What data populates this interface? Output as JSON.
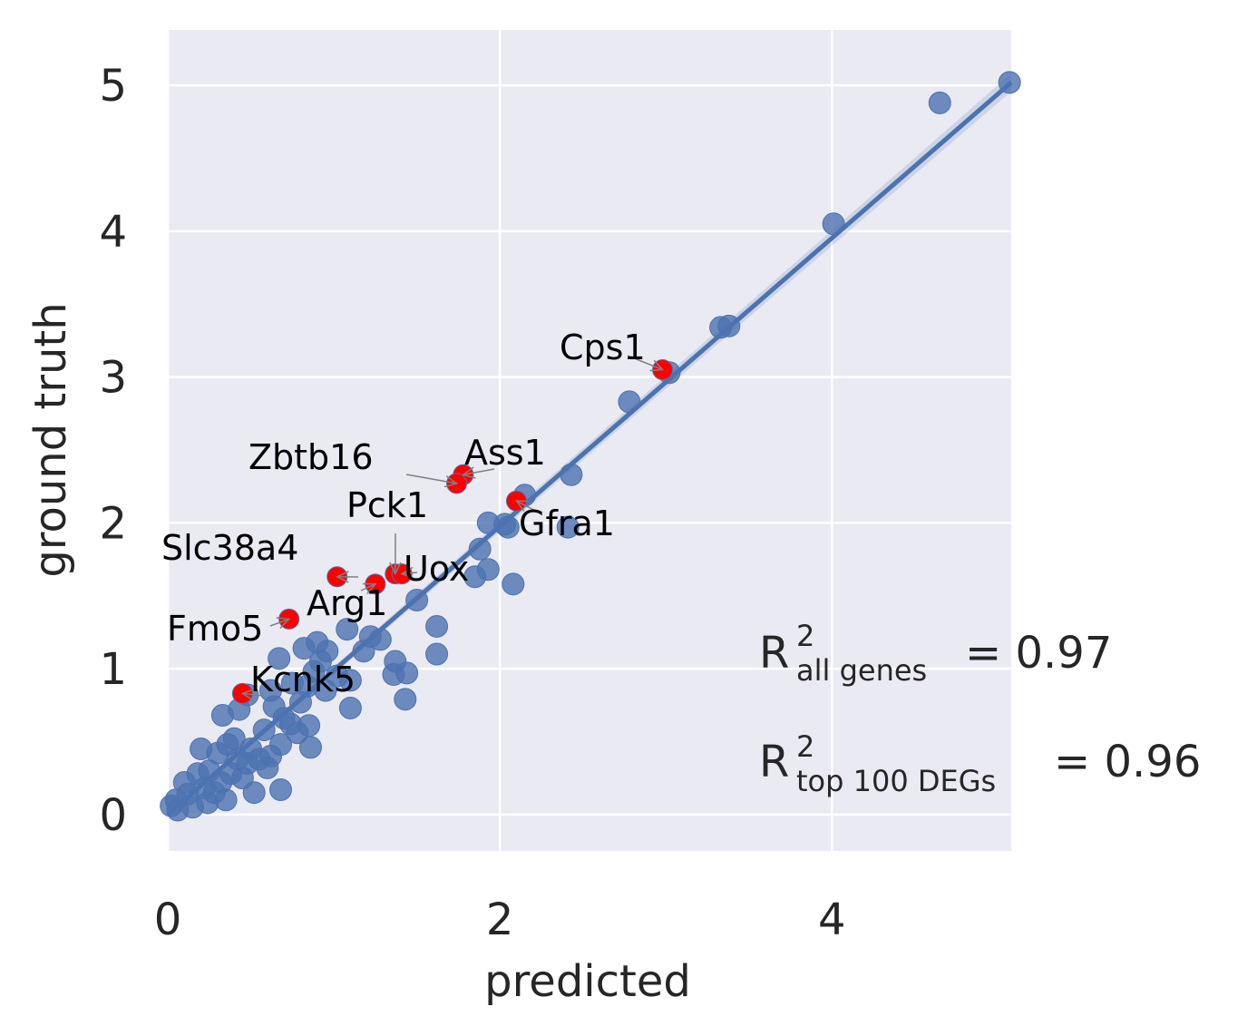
{
  "chart_data": {
    "type": "scatter",
    "xlabel": "predicted",
    "ylabel": "ground truth",
    "xlim": [
      0,
      5.08
    ],
    "ylim": [
      -0.25,
      5.38
    ],
    "xticks": [
      0,
      2,
      4
    ],
    "yticks": [
      0,
      1,
      2,
      3,
      4,
      5
    ],
    "grid": true,
    "colors": {
      "background": "#eaeaf2",
      "points": "#4c72b0",
      "highlight": "#ff0000",
      "fit_line": "#4c72b0"
    },
    "fit_line": {
      "from": [
        0,
        0
      ],
      "to": [
        5.08,
        5.02
      ]
    },
    "points": [
      [
        5.07,
        5.02
      ],
      [
        4.65,
        4.88
      ],
      [
        4.01,
        4.05
      ],
      [
        3.33,
        3.34
      ],
      [
        3.38,
        3.35
      ],
      [
        3.02,
        3.03
      ],
      [
        2.78,
        2.83
      ],
      [
        2.43,
        2.33
      ],
      [
        2.15,
        2.19
      ],
      [
        2.41,
        1.97
      ],
      [
        2.05,
        1.97
      ],
      [
        1.93,
        2.0
      ],
      [
        2.03,
        1.99
      ],
      [
        1.88,
        1.82
      ],
      [
        1.93,
        1.68
      ],
      [
        1.85,
        1.63
      ],
      [
        2.08,
        1.58
      ],
      [
        1.5,
        1.47
      ],
      [
        1.62,
        1.29
      ],
      [
        1.62,
        1.1
      ],
      [
        1.37,
        1.05
      ],
      [
        1.44,
        0.97
      ],
      [
        1.36,
        0.96
      ],
      [
        1.43,
        0.79
      ],
      [
        1.1,
        0.92
      ],
      [
        1.1,
        0.73
      ],
      [
        1.08,
        1.27
      ],
      [
        1.22,
        1.22
      ],
      [
        0.9,
        1.18
      ],
      [
        0.82,
        1.14
      ],
      [
        0.67,
        1.07
      ],
      [
        0.88,
        0.98
      ],
      [
        0.75,
        0.9
      ],
      [
        0.62,
        0.85
      ],
      [
        0.48,
        0.82
      ],
      [
        0.43,
        0.72
      ],
      [
        0.33,
        0.68
      ],
      [
        0.85,
        0.61
      ],
      [
        0.78,
        0.56
      ],
      [
        0.68,
        0.48
      ],
      [
        0.86,
        0.46
      ],
      [
        0.62,
        0.4
      ],
      [
        0.48,
        0.35
      ],
      [
        0.6,
        0.32
      ],
      [
        0.2,
        0.45
      ],
      [
        0.45,
        0.25
      ],
      [
        0.32,
        0.22
      ],
      [
        0.22,
        0.18
      ],
      [
        0.12,
        0.14
      ],
      [
        0.05,
        0.1
      ],
      [
        0.68,
        0.17
      ],
      [
        0.55,
        0.38
      ],
      [
        0.4,
        0.52
      ],
      [
        0.3,
        0.42
      ],
      [
        0.25,
        0.3
      ],
      [
        0.15,
        0.05
      ],
      [
        0.35,
        0.1
      ],
      [
        0.52,
        0.15
      ],
      [
        0.58,
        0.58
      ],
      [
        0.7,
        0.66
      ],
      [
        0.8,
        0.77
      ],
      [
        0.95,
        0.85
      ],
      [
        1.02,
        0.95
      ],
      [
        0.92,
        1.05
      ],
      [
        0.74,
        0.62
      ],
      [
        0.28,
        0.15
      ],
      [
        0.1,
        0.22
      ],
      [
        0.18,
        0.28
      ],
      [
        0.42,
        0.38
      ],
      [
        0.06,
        0.03
      ],
      [
        0.02,
        0.06
      ],
      [
        0.24,
        0.08
      ],
      [
        0.36,
        0.48
      ],
      [
        0.5,
        0.45
      ],
      [
        0.64,
        0.74
      ],
      [
        1.18,
        1.12
      ],
      [
        1.28,
        1.2
      ],
      [
        0.96,
        1.12
      ],
      [
        0.84,
        0.88
      ],
      [
        0.38,
        0.28
      ]
    ],
    "highlighted": [
      {
        "gene": "Cps1",
        "x": 2.98,
        "y": 3.05
      },
      {
        "gene": "Ass1",
        "x": 1.78,
        "y": 2.33
      },
      {
        "gene": "Zbtb16",
        "x": 1.74,
        "y": 2.27
      },
      {
        "gene": "Gfra1",
        "x": 2.1,
        "y": 2.15
      },
      {
        "gene": "Pck1",
        "x": 1.37,
        "y": 1.65
      },
      {
        "gene": "Uox",
        "x": 1.41,
        "y": 1.65
      },
      {
        "gene": "Slc38a4",
        "x": 1.02,
        "y": 1.63
      },
      {
        "gene": "Arg1",
        "x": 1.25,
        "y": 1.58
      },
      {
        "gene": "Fmo5",
        "x": 0.73,
        "y": 1.34
      },
      {
        "gene": "Kcnk5",
        "x": 0.45,
        "y": 0.83
      }
    ],
    "annotations": {
      "r2_all_label": "R",
      "r2_all_sup": "2",
      "r2_all_sub": "all genes",
      "r2_all_value": "= 0.97",
      "r2_top_label": "R",
      "r2_top_sup": "2",
      "r2_top_sub": "top 100 DEGs",
      "r2_top_value": "= 0.96"
    }
  }
}
